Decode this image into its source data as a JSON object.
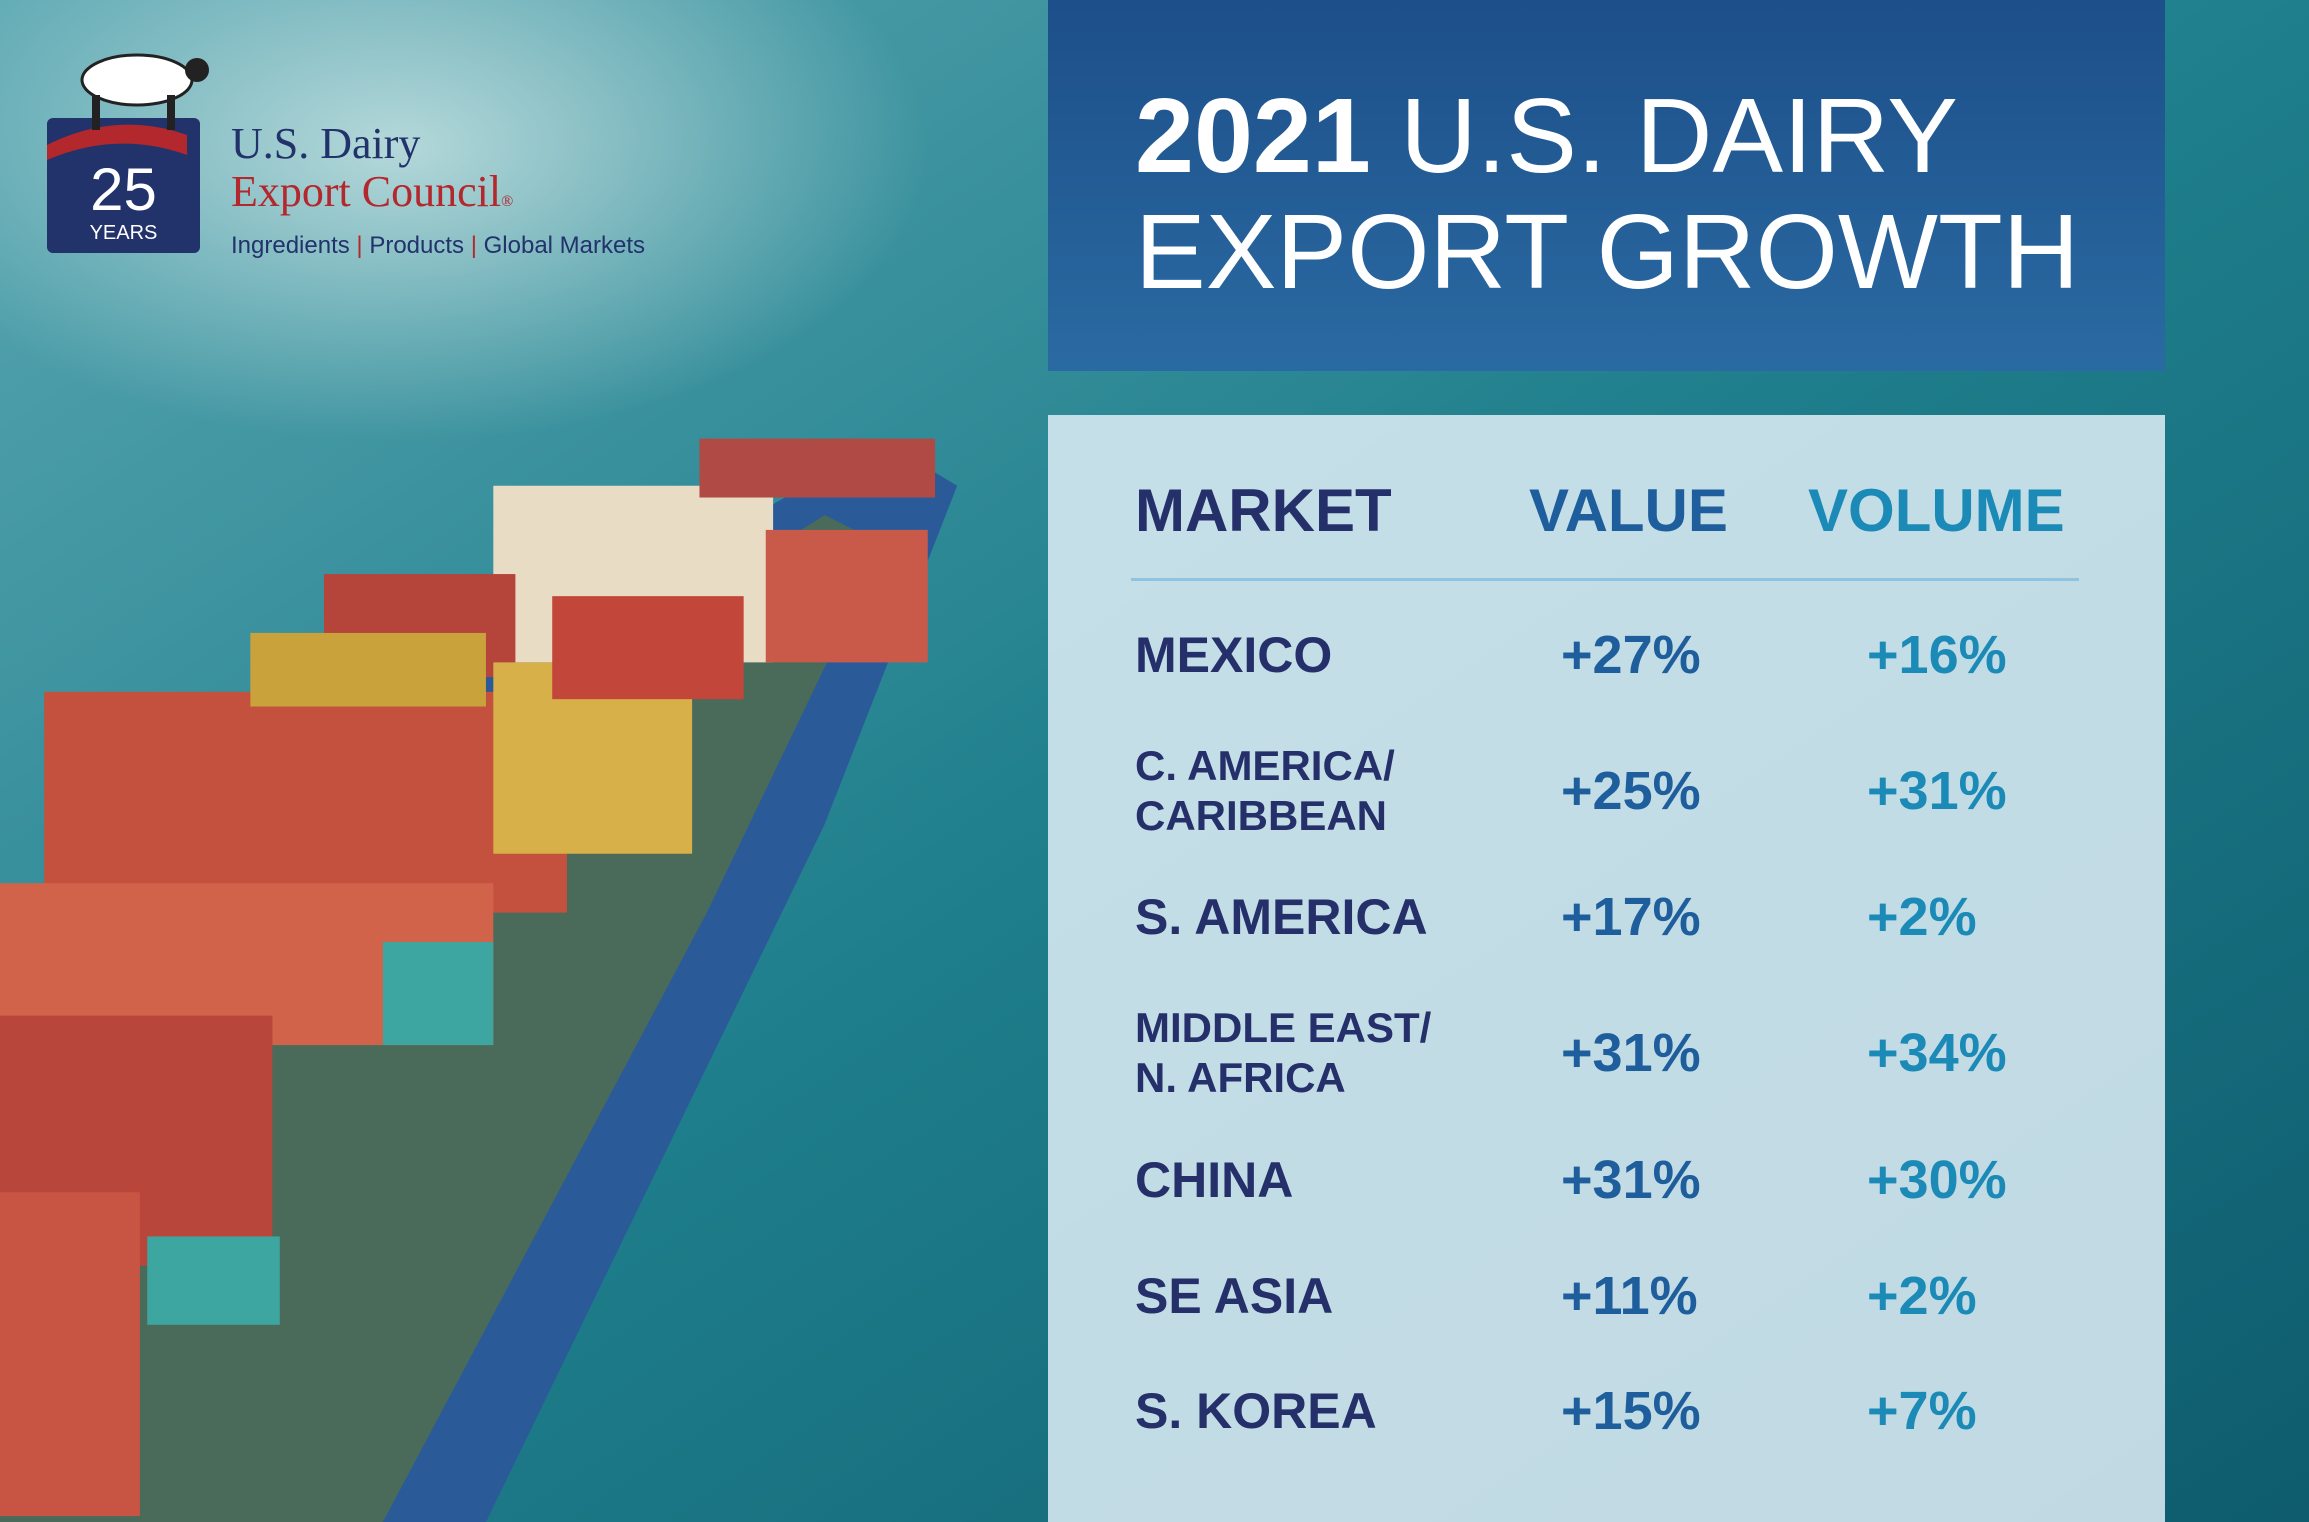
{
  "logo": {
    "years_number": "25",
    "years_label": "YEARS",
    "name_line1": "U.S. Dairy",
    "name_line2": "Export Council",
    "registered": "®",
    "tagline": [
      "Ingredients",
      "Products",
      "Global Markets"
    ]
  },
  "header": {
    "title_year": "2021",
    "title_line1": "U.S. DAIRY",
    "title_line2": "EXPORT GROWTH"
  },
  "table": {
    "columns": [
      "MARKET",
      "VALUE",
      "VOLUME"
    ],
    "rows": [
      [
        [
          "MEXICO"
        ],
        "+27%",
        "+16%"
      ],
      [
        [
          "C. AMERICA/",
          "CARIBBEAN"
        ],
        "+25%",
        "+31%"
      ],
      [
        [
          "S. AMERICA"
        ],
        "+17%",
        "+2%"
      ],
      [
        [
          "MIDDLE EAST/",
          "N. AFRICA"
        ],
        "+31%",
        "+34%"
      ],
      [
        [
          "CHINA"
        ],
        "+31%",
        "+30%"
      ],
      [
        [
          "SE ASIA"
        ],
        "+11%",
        "+2%"
      ],
      [
        [
          "S. KOREA"
        ],
        "+15%",
        "+7%"
      ]
    ]
  }
}
